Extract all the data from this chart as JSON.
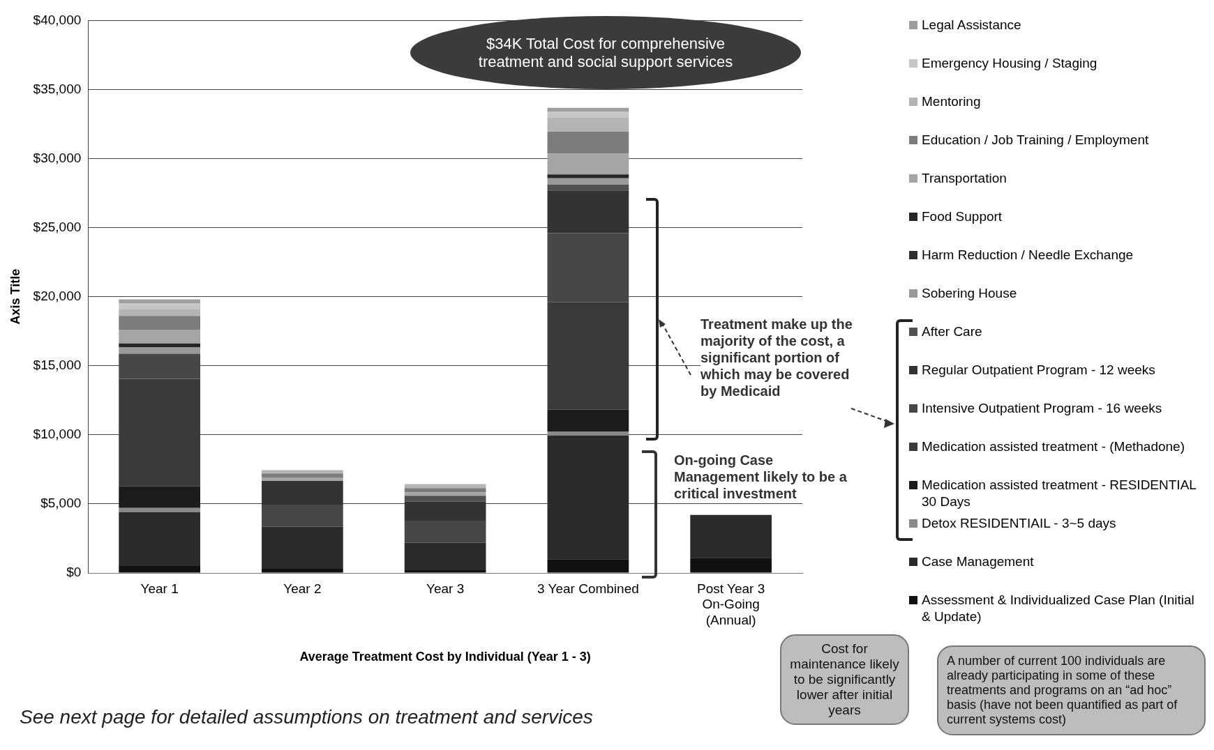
{
  "chart_data": {
    "type": "bar",
    "stacked": true,
    "xlabel": "Average Treatment Cost by Individual (Year 1 - 3)",
    "ylabel": "Axis Title",
    "categories": [
      "Year 1",
      "Year 2",
      "Year 3",
      "3 Year Combined",
      "Post Year 3 On-Going (Annual)"
    ],
    "ylim": [
      0,
      40000
    ],
    "yticks": [
      {
        "value": 0,
        "label": "$0"
      },
      {
        "value": 5000,
        "label": "$5,000"
      },
      {
        "value": 10000,
        "label": "$10,000"
      },
      {
        "value": 15000,
        "label": "$15,000"
      },
      {
        "value": 20000,
        "label": "$20,000"
      },
      {
        "value": 25000,
        "label": "$25,000"
      },
      {
        "value": 30000,
        "label": "$30,000"
      },
      {
        "value": 35000,
        "label": "$35,000"
      },
      {
        "value": 40000,
        "label": "$40,000"
      }
    ],
    "grid": "y",
    "legend": "right",
    "series": [
      {
        "name": "Assessment & Individualized Case Plan (Initial & Update)",
        "color": "#111111",
        "values": [
          500,
          300,
          200,
          1000,
          1100
        ]
      },
      {
        "name": "Case Management",
        "color": "#2b2b2b",
        "values": [
          3900,
          3050,
          2000,
          8950,
          3100
        ]
      },
      {
        "name": "Detox RESIDENTIAIL - 3~5 days",
        "color": "#8a8a8a",
        "values": [
          300,
          0,
          0,
          300,
          0
        ]
      },
      {
        "name": "Medication assisted treatment - RESIDENTIAL 30 Days",
        "color": "#1c1c1c",
        "values": [
          1570,
          0,
          0,
          1570,
          0
        ]
      },
      {
        "name": "Medication assisted treatment - (Methadone)",
        "color": "#3a3a3a",
        "values": [
          7780,
          0,
          0,
          7780,
          0
        ]
      },
      {
        "name": "Intensive Outpatient Program - 16 weeks",
        "color": "#474747",
        "values": [
          1820,
          1600,
          1580,
          5000,
          0
        ]
      },
      {
        "name": "Regular Outpatient Program - 12 weeks",
        "color": "#333333",
        "values": [
          0,
          1710,
          1380,
          3090,
          0
        ]
      },
      {
        "name": "After Care",
        "color": "#505050",
        "values": [
          0,
          0,
          430,
          430,
          0
        ]
      },
      {
        "name": "Sobering House",
        "color": "#9a9a9a",
        "values": [
          460,
          0,
          0,
          460,
          0
        ]
      },
      {
        "name": "Harm Reduction / Needle Exchange",
        "color": "#2f2f2f",
        "values": [
          0,
          0,
          0,
          0,
          0
        ]
      },
      {
        "name": "Food Support",
        "color": "#262626",
        "values": [
          280,
          0,
          0,
          280,
          0
        ]
      },
      {
        "name": "Transportation",
        "color": "#a5a5a5",
        "values": [
          1000,
          250,
          250,
          1500,
          0
        ]
      },
      {
        "name": "Education / Job Training / Employment",
        "color": "#7c7c7c",
        "values": [
          1000,
          300,
          300,
          1600,
          0
        ]
      },
      {
        "name": "Mentoring",
        "color": "#b4b4b4",
        "values": [
          500,
          230,
          290,
          1020,
          0
        ]
      },
      {
        "name": "Emergency Housing / Staging",
        "color": "#c6c6c6",
        "values": [
          400,
          0,
          0,
          400,
          0
        ]
      },
      {
        "name": "Legal Assistance",
        "color": "#9e9e9e",
        "values": [
          300,
          0,
          0,
          300,
          0
        ]
      }
    ],
    "annotations": [
      "$34K Total Cost for comprehensive treatment and social support services",
      "Treatment make up the majority of the cost, a significant portion of which may be covered by Medicaid",
      "On-going Case Management likely to be a critical investment",
      "Cost for maintenance likely to be significantly lower after initial years",
      "A number of current 100 individuals are already participating in some of these treatments and programs on an “ad hoc” basis (have not been quantified as part of current systems cost)",
      "See next page for detailed assumptions on treatment and services"
    ]
  }
}
